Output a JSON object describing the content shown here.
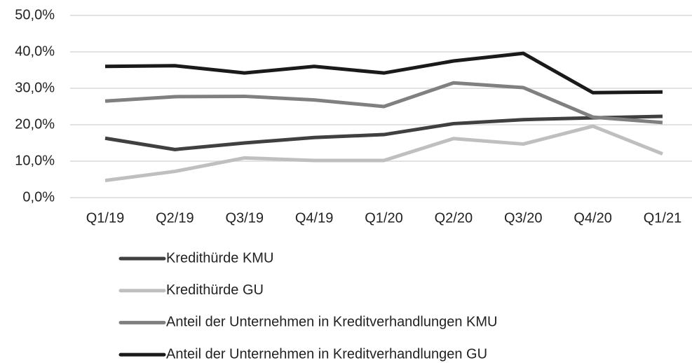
{
  "chart_data": {
    "type": "line",
    "categories": [
      "Q1/19",
      "Q2/19",
      "Q3/19",
      "Q4/19",
      "Q1/20",
      "Q2/20",
      "Q3/20",
      "Q4/20",
      "Q1/21"
    ],
    "series": [
      {
        "name": "Kredithürde KMU",
        "color": "#404040",
        "values": [
          16.3,
          13.2,
          15.0,
          16.5,
          17.3,
          20.3,
          21.4,
          21.9,
          22.3
        ]
      },
      {
        "name": "Kredithürde GU",
        "color": "#bfbfbf",
        "values": [
          4.7,
          7.2,
          10.9,
          10.2,
          10.2,
          16.2,
          14.7,
          19.6,
          12.0
        ]
      },
      {
        "name": "Anteil der Unternehmen in Kreditverhandlungen KMU",
        "color": "#808080",
        "values": [
          26.5,
          27.7,
          27.8,
          26.8,
          25.0,
          31.5,
          30.2,
          22.1,
          20.6
        ]
      },
      {
        "name": "Anteil der Unternehmen in Kreditverhandlungen GU",
        "color": "#1a1a1a",
        "values": [
          36.0,
          36.2,
          34.2,
          36.0,
          34.2,
          37.5,
          39.6,
          28.8,
          29.0
        ]
      }
    ],
    "ylim": [
      0,
      50
    ],
    "yticks": [
      {
        "value": 0,
        "label": "0,0%"
      },
      {
        "value": 10,
        "label": "10,0%"
      },
      {
        "value": 20,
        "label": "20,0%"
      },
      {
        "value": 30,
        "label": "30,0%"
      },
      {
        "value": 40,
        "label": "40,0%"
      },
      {
        "value": 50,
        "label": "50,0%"
      }
    ],
    "grid": true,
    "legend": "bottom"
  }
}
